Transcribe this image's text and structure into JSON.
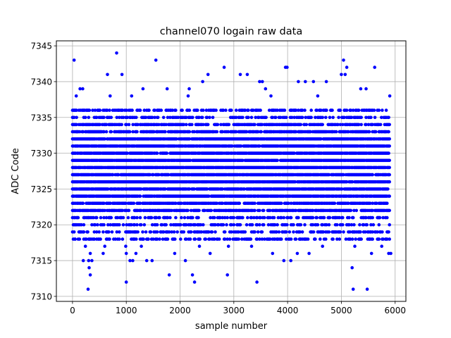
{
  "chart_data": {
    "type": "scatter",
    "title": "channel070 logain raw data",
    "xlabel": "sample number",
    "ylabel": "ADC Code",
    "xlim": [
      -300,
      6200
    ],
    "ylim": [
      7309.3,
      7345.7
    ],
    "xticks": [
      0,
      1000,
      2000,
      3000,
      4000,
      5000,
      6000
    ],
    "xtick_labels": [
      "0",
      "1000",
      "2000",
      "3000",
      "4000",
      "5000",
      "6000"
    ],
    "yticks": [
      7310,
      7315,
      7320,
      7325,
      7330,
      7335,
      7340,
      7345
    ],
    "ytick_labels": [
      "7310",
      "7315",
      "7320",
      "7325",
      "7330",
      "7335",
      "7340",
      "7345"
    ],
    "grid": true,
    "marker_color": "#0000ff",
    "band": {
      "x_start": 0,
      "x_end": 5900,
      "x_step": 15,
      "dense_min": 7318,
      "dense_max": 7336,
      "typical_level": 7328
    },
    "points": [
      [
        30,
        7343
      ],
      [
        820,
        7344
      ],
      [
        920,
        7341
      ],
      [
        650,
        7341
      ],
      [
        1550,
        7343
      ],
      [
        2820,
        7342
      ],
      [
        3960,
        7342
      ],
      [
        3990,
        7342
      ],
      [
        5040,
        7343
      ],
      [
        5100,
        7342
      ],
      [
        5620,
        7342
      ],
      [
        2520,
        7341
      ],
      [
        3120,
        7341
      ],
      [
        3250,
        7341
      ],
      [
        5000,
        7341
      ],
      [
        5070,
        7341
      ],
      [
        3480,
        7340
      ],
      [
        3530,
        7340
      ],
      [
        4200,
        7340
      ],
      [
        4330,
        7340
      ],
      [
        4480,
        7340
      ],
      [
        4720,
        7340
      ],
      [
        2420,
        7340
      ],
      [
        140,
        7339
      ],
      [
        190,
        7339
      ],
      [
        1310,
        7339
      ],
      [
        1760,
        7339
      ],
      [
        2170,
        7339
      ],
      [
        3590,
        7339
      ],
      [
        5360,
        7339
      ],
      [
        5460,
        7339
      ],
      [
        20,
        7336
      ],
      [
        70,
        7338
      ],
      [
        700,
        7338
      ],
      [
        1100,
        7338
      ],
      [
        2150,
        7338
      ],
      [
        3690,
        7338
      ],
      [
        4560,
        7338
      ],
      [
        5900,
        7338
      ],
      [
        50,
        7318
      ],
      [
        130,
        7318
      ],
      [
        520,
        7318
      ],
      [
        800,
        7318
      ],
      [
        1400,
        7318
      ],
      [
        2100,
        7318
      ],
      [
        3060,
        7318
      ],
      [
        3800,
        7318
      ],
      [
        4220,
        7318
      ],
      [
        4500,
        7318
      ],
      [
        5160,
        7318
      ],
      [
        5520,
        7318
      ],
      [
        5820,
        7318
      ],
      [
        240,
        7317
      ],
      [
        600,
        7317
      ],
      [
        990,
        7317
      ],
      [
        1280,
        7317
      ],
      [
        2360,
        7317
      ],
      [
        2900,
        7317
      ],
      [
        3330,
        7317
      ],
      [
        4650,
        7317
      ],
      [
        5250,
        7317
      ],
      [
        5750,
        7317
      ],
      [
        330,
        7316
      ],
      [
        570,
        7316
      ],
      [
        1000,
        7316
      ],
      [
        1180,
        7316
      ],
      [
        1900,
        7316
      ],
      [
        2560,
        7316
      ],
      [
        3720,
        7316
      ],
      [
        4180,
        7316
      ],
      [
        4400,
        7316
      ],
      [
        5560,
        7316
      ],
      [
        5880,
        7316
      ],
      [
        5920,
        7316
      ],
      [
        200,
        7315
      ],
      [
        300,
        7315
      ],
      [
        360,
        7315
      ],
      [
        1070,
        7315
      ],
      [
        1120,
        7315
      ],
      [
        1380,
        7315
      ],
      [
        1480,
        7315
      ],
      [
        2100,
        7315
      ],
      [
        3930,
        7315
      ],
      [
        4060,
        7315
      ],
      [
        310,
        7314
      ],
      [
        5200,
        7314
      ],
      [
        330,
        7313
      ],
      [
        1800,
        7313
      ],
      [
        2230,
        7313
      ],
      [
        2880,
        7313
      ],
      [
        1000,
        7312
      ],
      [
        2270,
        7312
      ],
      [
        3430,
        7312
      ],
      [
        290,
        7311
      ],
      [
        5220,
        7311
      ],
      [
        5480,
        7311
      ]
    ]
  }
}
